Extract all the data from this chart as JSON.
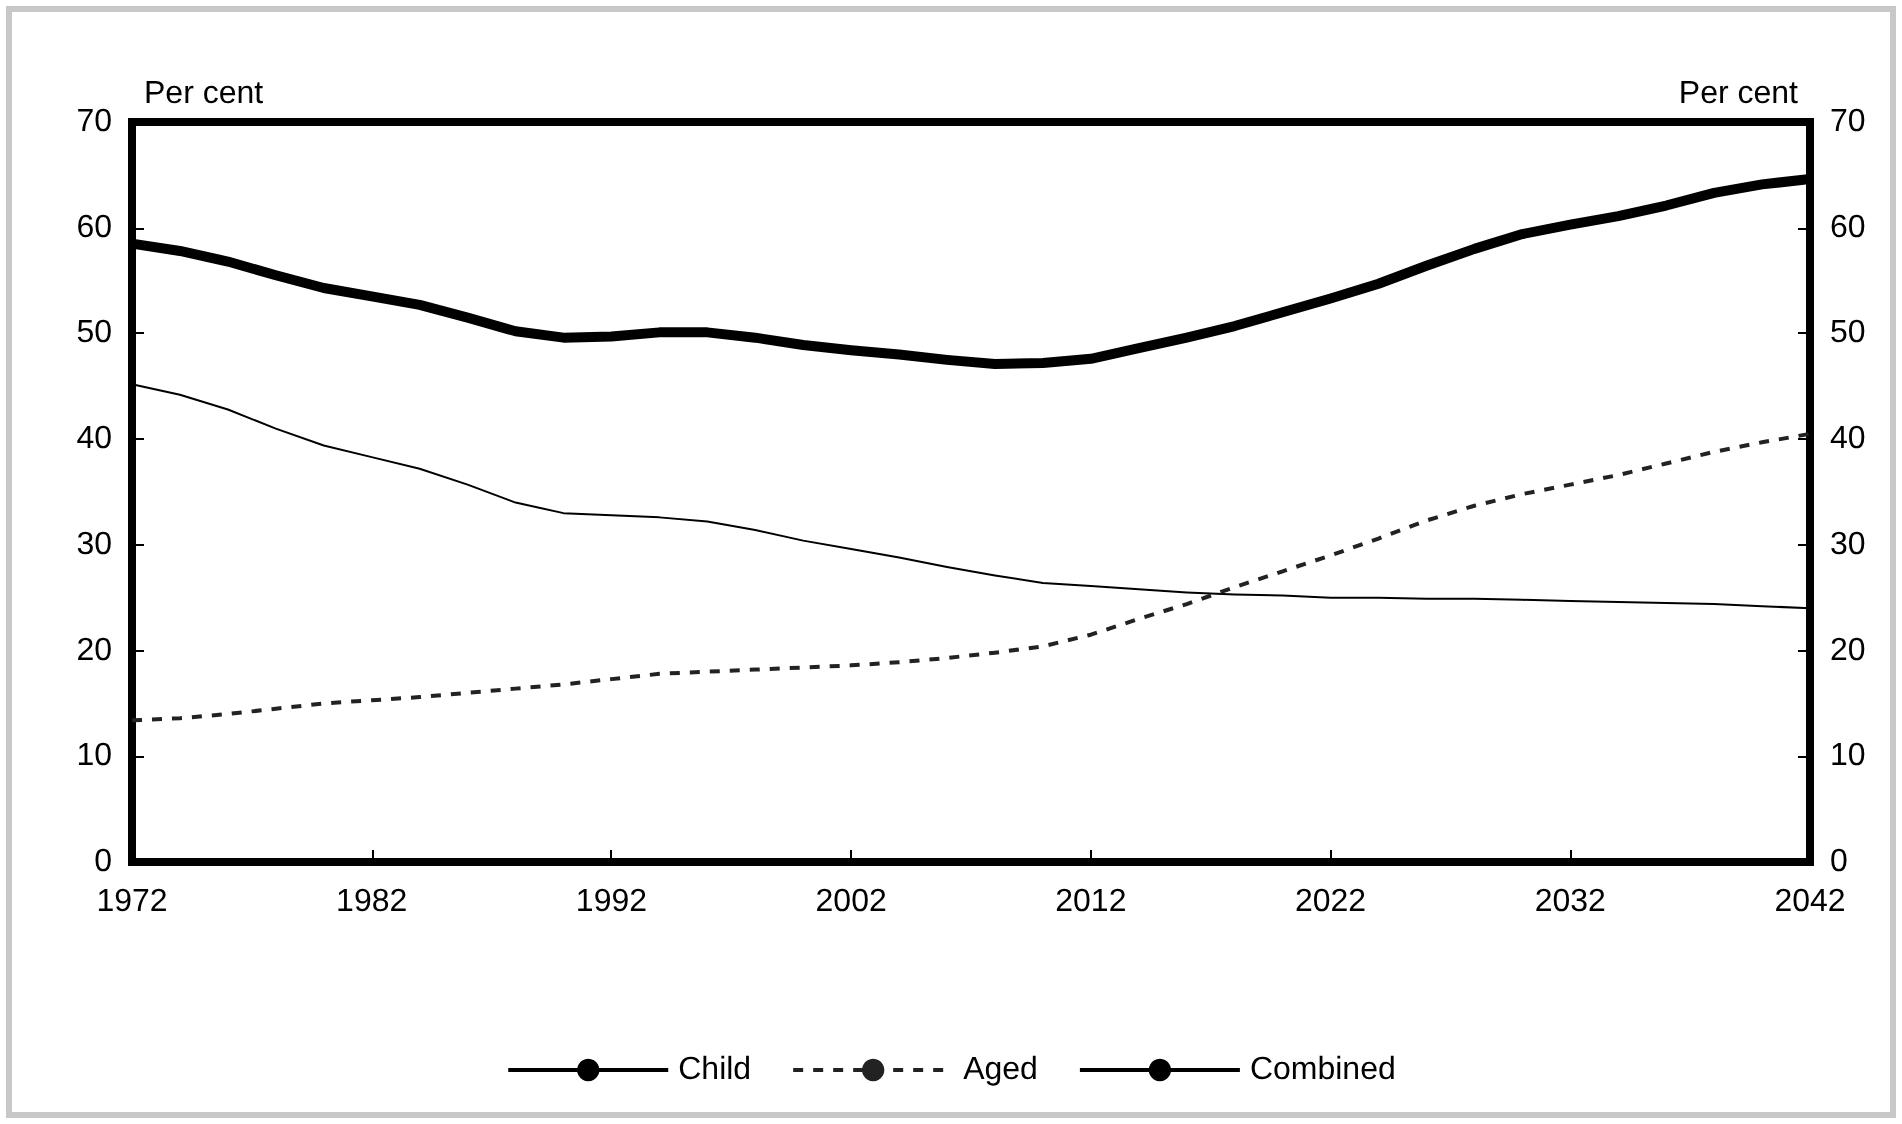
{
  "chart_data": {
    "type": "line",
    "ylabel": "Per cent",
    "y2label": "Per cent",
    "x": [
      1972,
      1974,
      1976,
      1978,
      1980,
      1982,
      1984,
      1986,
      1988,
      1990,
      1992,
      1994,
      1996,
      1998,
      2000,
      2002,
      2004,
      2006,
      2008,
      2010,
      2012,
      2014,
      2016,
      2018,
      2020,
      2022,
      2024,
      2026,
      2028,
      2030,
      2032,
      2034,
      2036,
      2038,
      2040,
      2042
    ],
    "series": [
      {
        "name": "Child",
        "color": "#000000",
        "line_style": "solid",
        "values": [
          45.2,
          44.2,
          42.8,
          41.0,
          39.4,
          38.3,
          37.2,
          35.7,
          34.0,
          33.0,
          32.8,
          32.6,
          32.2,
          31.4,
          30.4,
          29.6,
          28.8,
          27.9,
          27.1,
          26.4,
          26.1,
          25.8,
          25.5,
          25.3,
          25.2,
          25.0,
          25.0,
          24.9,
          24.9,
          24.8,
          24.7,
          24.6,
          24.5,
          24.4,
          24.2,
          24.0
        ]
      },
      {
        "name": "Aged",
        "color": "#222222",
        "line_style": "dashed",
        "values": [
          13.4,
          13.6,
          14.0,
          14.5,
          15.0,
          15.3,
          15.6,
          16.0,
          16.4,
          16.8,
          17.3,
          17.8,
          18.0,
          18.2,
          18.4,
          18.6,
          18.9,
          19.3,
          19.8,
          20.4,
          21.5,
          23.0,
          24.4,
          26.0,
          27.5,
          29.0,
          30.6,
          32.3,
          33.7,
          34.8,
          35.7,
          36.6,
          37.7,
          38.8,
          39.7,
          40.5
        ]
      },
      {
        "name": "Combined",
        "color": "#000000",
        "line_style": "solid",
        "values": [
          58.5,
          57.8,
          56.8,
          55.5,
          54.3,
          53.5,
          52.7,
          51.5,
          50.2,
          49.6,
          49.7,
          50.1,
          50.1,
          49.6,
          48.9,
          48.4,
          48.0,
          47.5,
          47.1,
          47.2,
          47.6,
          48.6,
          49.6,
          50.7,
          52.0,
          53.3,
          54.7,
          56.4,
          58.0,
          59.4,
          60.3,
          61.1,
          62.1,
          63.3,
          64.1,
          64.6
        ]
      }
    ],
    "xlim": [
      1972,
      2042
    ],
    "xticks": [
      1972,
      1982,
      1992,
      2002,
      2012,
      2022,
      2032,
      2042
    ],
    "ylim": [
      0,
      70
    ],
    "yticks": [
      0,
      10,
      20,
      30,
      40,
      50,
      60,
      70
    ],
    "y2lim": [
      0,
      70
    ],
    "y2ticks": [
      0,
      10,
      20,
      30,
      40,
      50,
      60,
      70
    ],
    "grid": false,
    "legend": "bottom",
    "marker": "none"
  }
}
